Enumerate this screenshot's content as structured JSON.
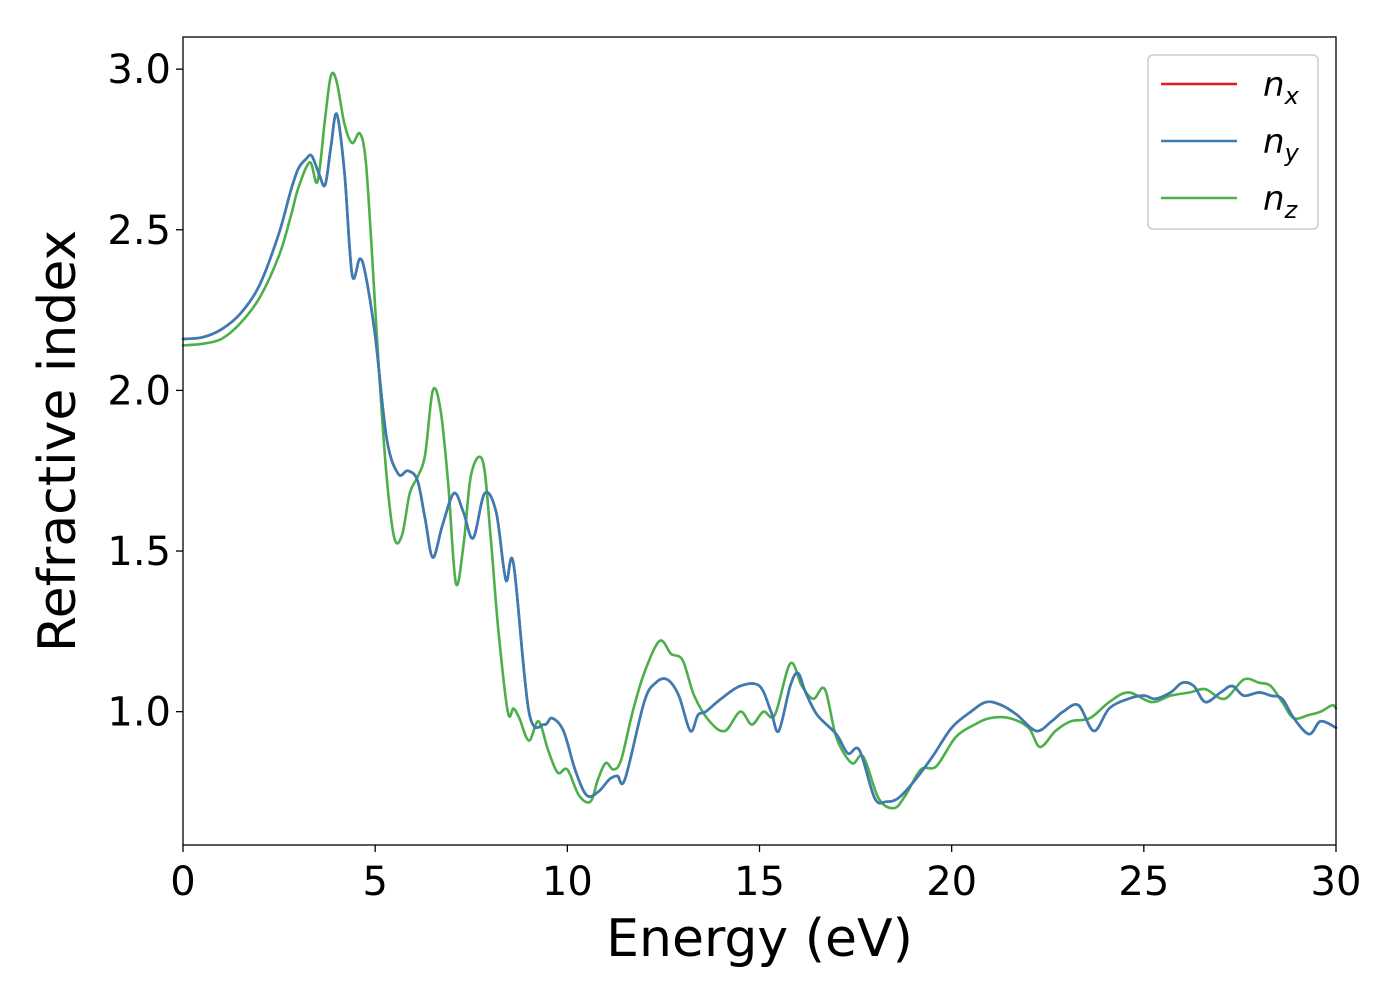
{
  "chart_data": {
    "type": "line",
    "xlabel": "Energy (eV)",
    "ylabel": "Refractive index",
    "xlim": [
      0,
      30
    ],
    "ylim": [
      0.585,
      3.1
    ],
    "xticks": [
      "0",
      "5",
      "10",
      "15",
      "20",
      "25",
      "30"
    ],
    "yticks": [
      "1.0",
      "1.5",
      "2.0",
      "2.5",
      "3.0"
    ],
    "grid": false,
    "legend_position": "top-right",
    "series": [
      {
        "name": "n",
        "subscript": "x",
        "color": "#e41a1c",
        "x": [
          0,
          0.5,
          1.0,
          1.5,
          2.0,
          2.5,
          2.8,
          3.0,
          3.2,
          3.35,
          3.55,
          3.7,
          3.85,
          4.0,
          4.2,
          4.4,
          4.6,
          4.75,
          5.0,
          5.3,
          5.6,
          5.85,
          6.1,
          6.3,
          6.5,
          6.75,
          7.05,
          7.3,
          7.55,
          7.85,
          8.15,
          8.4,
          8.6,
          9.0,
          9.4,
          9.6,
          9.9,
          10.2,
          10.5,
          10.8,
          11.1,
          11.3,
          11.5,
          12.0,
          12.3,
          12.6,
          12.9,
          13.2,
          13.4,
          13.6,
          14.0,
          14.5,
          15.0,
          15.3,
          15.5,
          15.8,
          16.0,
          16.2,
          16.5,
          17.0,
          17.3,
          17.6,
          18.0,
          18.3,
          18.6,
          19.0,
          19.5,
          20.0,
          20.5,
          20.9,
          21.3,
          21.7,
          22.2,
          22.6,
          22.9,
          23.3,
          23.7,
          24.1,
          24.6,
          25.0,
          25.3,
          25.7,
          26.0,
          26.3,
          26.6,
          27.0,
          27.3,
          27.6,
          28.0,
          28.3,
          28.6,
          28.9,
          29.3,
          29.6,
          30.0
        ],
        "y": [
          2.16,
          2.165,
          2.19,
          2.24,
          2.33,
          2.49,
          2.62,
          2.69,
          2.72,
          2.73,
          2.67,
          2.64,
          2.76,
          2.86,
          2.68,
          2.36,
          2.41,
          2.36,
          2.17,
          1.85,
          1.74,
          1.75,
          1.72,
          1.6,
          1.48,
          1.58,
          1.68,
          1.62,
          1.54,
          1.68,
          1.62,
          1.41,
          1.46,
          1.0,
          0.96,
          0.98,
          0.94,
          0.82,
          0.74,
          0.75,
          0.79,
          0.8,
          0.79,
          1.03,
          1.09,
          1.1,
          1.05,
          0.94,
          0.99,
          1.0,
          1.04,
          1.08,
          1.08,
          1.0,
          0.94,
          1.08,
          1.12,
          1.06,
          0.99,
          0.93,
          0.87,
          0.88,
          0.73,
          0.72,
          0.73,
          0.78,
          0.86,
          0.95,
          1.0,
          1.03,
          1.02,
          0.99,
          0.94,
          0.97,
          1.0,
          1.02,
          0.94,
          1.01,
          1.04,
          1.05,
          1.04,
          1.06,
          1.09,
          1.08,
          1.03,
          1.06,
          1.08,
          1.05,
          1.06,
          1.05,
          1.04,
          0.98,
          0.93,
          0.97,
          0.95
        ]
      },
      {
        "name": "n",
        "subscript": "y",
        "color": "#377eb8",
        "x": [
          0,
          0.5,
          1.0,
          1.5,
          2.0,
          2.5,
          2.8,
          3.0,
          3.2,
          3.35,
          3.55,
          3.7,
          3.85,
          4.0,
          4.2,
          4.4,
          4.6,
          4.75,
          5.0,
          5.3,
          5.6,
          5.85,
          6.1,
          6.3,
          6.5,
          6.75,
          7.05,
          7.3,
          7.55,
          7.85,
          8.15,
          8.4,
          8.6,
          9.0,
          9.4,
          9.6,
          9.9,
          10.2,
          10.5,
          10.8,
          11.1,
          11.3,
          11.5,
          12.0,
          12.3,
          12.6,
          12.9,
          13.2,
          13.4,
          13.6,
          14.0,
          14.5,
          15.0,
          15.3,
          15.5,
          15.8,
          16.0,
          16.2,
          16.5,
          17.0,
          17.3,
          17.6,
          18.0,
          18.3,
          18.6,
          19.0,
          19.5,
          20.0,
          20.5,
          20.9,
          21.3,
          21.7,
          22.2,
          22.6,
          22.9,
          23.3,
          23.7,
          24.1,
          24.6,
          25.0,
          25.3,
          25.7,
          26.0,
          26.3,
          26.6,
          27.0,
          27.3,
          27.6,
          28.0,
          28.3,
          28.6,
          28.9,
          29.3,
          29.6,
          30.0
        ],
        "y": [
          2.16,
          2.165,
          2.19,
          2.24,
          2.33,
          2.49,
          2.62,
          2.69,
          2.72,
          2.73,
          2.67,
          2.64,
          2.76,
          2.86,
          2.68,
          2.36,
          2.41,
          2.36,
          2.17,
          1.85,
          1.74,
          1.75,
          1.72,
          1.6,
          1.48,
          1.58,
          1.68,
          1.62,
          1.54,
          1.68,
          1.62,
          1.41,
          1.46,
          1.0,
          0.96,
          0.98,
          0.94,
          0.82,
          0.74,
          0.75,
          0.79,
          0.8,
          0.79,
          1.03,
          1.09,
          1.1,
          1.05,
          0.94,
          0.99,
          1.0,
          1.04,
          1.08,
          1.08,
          1.0,
          0.94,
          1.08,
          1.12,
          1.06,
          0.99,
          0.93,
          0.87,
          0.88,
          0.73,
          0.72,
          0.73,
          0.78,
          0.86,
          0.95,
          1.0,
          1.03,
          1.02,
          0.99,
          0.94,
          0.97,
          1.0,
          1.02,
          0.94,
          1.01,
          1.04,
          1.05,
          1.04,
          1.06,
          1.09,
          1.08,
          1.03,
          1.06,
          1.08,
          1.05,
          1.06,
          1.05,
          1.04,
          0.98,
          0.93,
          0.97,
          0.95
        ]
      },
      {
        "name": "n",
        "subscript": "z",
        "color": "#4daf4a",
        "x": [
          0,
          0.5,
          1.0,
          1.5,
          2.0,
          2.5,
          2.8,
          3.0,
          3.3,
          3.5,
          3.7,
          3.85,
          4.0,
          4.2,
          4.4,
          4.6,
          4.75,
          4.9,
          5.1,
          5.3,
          5.5,
          5.7,
          5.9,
          6.1,
          6.3,
          6.5,
          6.7,
          6.9,
          7.1,
          7.3,
          7.5,
          7.8,
          8.0,
          8.2,
          8.45,
          8.6,
          8.75,
          9.0,
          9.25,
          9.5,
          9.75,
          10.0,
          10.3,
          10.6,
          10.8,
          11.0,
          11.2,
          11.4,
          11.7,
          12.0,
          12.4,
          12.7,
          13.0,
          13.3,
          13.7,
          14.1,
          14.5,
          14.8,
          15.1,
          15.4,
          15.8,
          16.1,
          16.4,
          16.7,
          17.0,
          17.4,
          17.7,
          18.1,
          18.5,
          18.8,
          19.2,
          19.6,
          20.1,
          20.6,
          21.0,
          21.5,
          22.0,
          22.3,
          22.7,
          23.1,
          23.6,
          24.1,
          24.6,
          25.2,
          25.7,
          26.2,
          26.6,
          27.1,
          27.6,
          28.0,
          28.3,
          28.6,
          28.9,
          29.3,
          29.6,
          29.9,
          30.0
        ],
        "y": [
          2.14,
          2.145,
          2.16,
          2.21,
          2.29,
          2.42,
          2.54,
          2.63,
          2.71,
          2.65,
          2.85,
          2.98,
          2.96,
          2.83,
          2.77,
          2.8,
          2.72,
          2.46,
          2.06,
          1.73,
          1.54,
          1.55,
          1.68,
          1.73,
          1.8,
          2.0,
          1.94,
          1.71,
          1.4,
          1.52,
          1.74,
          1.78,
          1.55,
          1.26,
          1.0,
          1.01,
          0.98,
          0.91,
          0.97,
          0.88,
          0.81,
          0.82,
          0.74,
          0.72,
          0.79,
          0.84,
          0.82,
          0.85,
          1.0,
          1.12,
          1.22,
          1.18,
          1.16,
          1.05,
          0.97,
          0.94,
          1.0,
          0.96,
          1.0,
          0.99,
          1.15,
          1.08,
          1.04,
          1.07,
          0.92,
          0.84,
          0.86,
          0.73,
          0.7,
          0.74,
          0.82,
          0.83,
          0.92,
          0.96,
          0.98,
          0.98,
          0.95,
          0.89,
          0.94,
          0.97,
          0.98,
          1.03,
          1.06,
          1.03,
          1.05,
          1.06,
          1.07,
          1.04,
          1.1,
          1.09,
          1.08,
          1.03,
          0.98,
          0.99,
          1.0,
          1.02,
          1.01
        ]
      }
    ]
  }
}
